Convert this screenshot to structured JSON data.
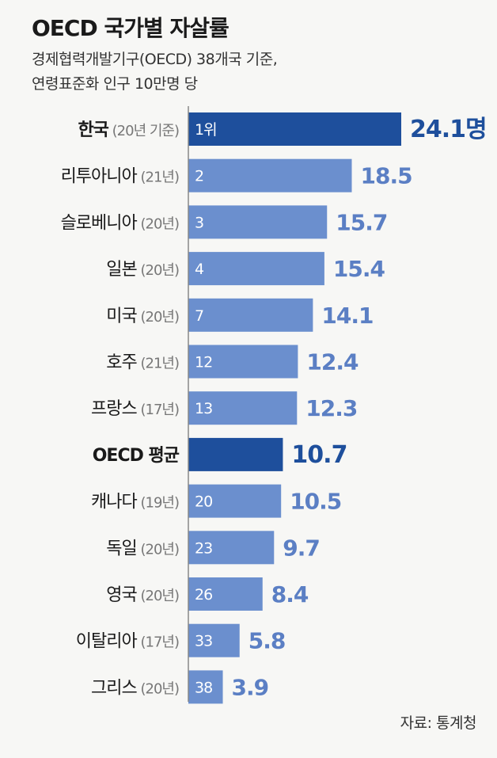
{
  "chart_data": {
    "type": "bar",
    "orientation": "horizontal",
    "title": "OECD 국가별 자살률",
    "subtitle_lines": [
      "경제협력개발기구(OECD) 38개국 기준,",
      "연령표준화 인구 10만명 당"
    ],
    "categories": [
      "한국",
      "리투아니아",
      "슬로베니아",
      "일본",
      "미국",
      "호주",
      "프랑스",
      "OECD 평균",
      "캐나다",
      "독일",
      "영국",
      "이탈리아",
      "그리스"
    ],
    "years": [
      "(20년 기준)",
      "(21년)",
      "(20년)",
      "(20년)",
      "(20년)",
      "(21년)",
      "(17년)",
      "",
      "(19년)",
      "(20년)",
      "(20년)",
      "(17년)",
      "(20년)"
    ],
    "ranks": [
      "1위",
      "2",
      "3",
      "4",
      "7",
      "12",
      "13",
      "",
      "20",
      "23",
      "26",
      "33",
      "38"
    ],
    "values": [
      24.1,
      18.5,
      15.7,
      15.4,
      14.1,
      12.4,
      12.3,
      10.7,
      10.5,
      9.7,
      8.4,
      5.8,
      3.9
    ],
    "value_labels": [
      "24.1명",
      "18.5",
      "15.7",
      "15.4",
      "14.1",
      "12.4",
      "12.3",
      "10.7",
      "10.5",
      "9.7",
      "8.4",
      "5.8",
      "3.9"
    ],
    "highlight": [
      "한국",
      "OECD 평균"
    ],
    "colors": {
      "bar": "#6b8fce",
      "bar_highlight": "#1e4f9c",
      "label_value": "#5b7fc4",
      "label_value_highlight": "#1e4f9c",
      "axis": "#888888"
    }
  },
  "source": "자료: 통계청"
}
